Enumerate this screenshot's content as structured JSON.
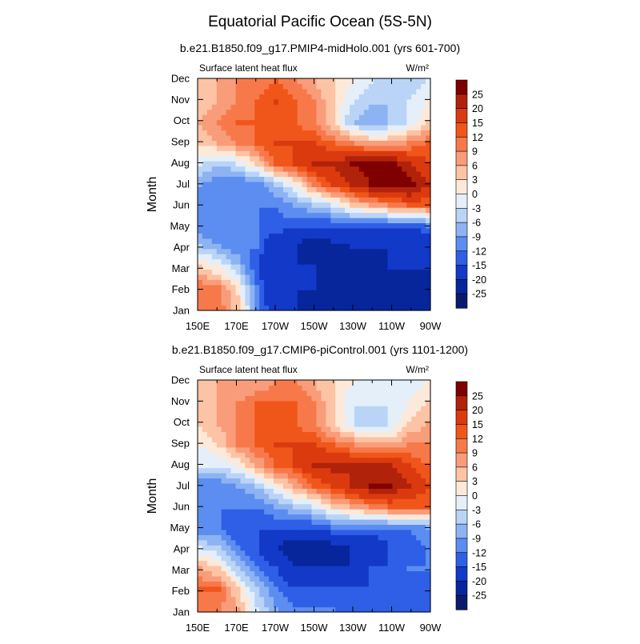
{
  "title": "Equatorial Pacific Ocean (5S-5N)",
  "colorbar_labels": [
    "25",
    "20",
    "15",
    "12",
    "9",
    "6",
    "3",
    "0",
    "-3",
    "-6",
    "-9",
    "-12",
    "-15",
    "-20",
    "-25"
  ],
  "colorbar_colors": [
    "#7f0000",
    "#b1220a",
    "#db3a0f",
    "#f0561a",
    "#f7794a",
    "#f99c7a",
    "#fcc3a4",
    "#fde9d9",
    "#e4effa",
    "#b9d4f6",
    "#8db3f3",
    "#5c8df0",
    "#2e5fe6",
    "#1239c8",
    "#07269c",
    "#0a1b6c"
  ],
  "chart_data": [
    {
      "type": "heatmap",
      "title": "b.e21.B1850.f09_g17.PMIP4-midHolo.001 (yrs 601-700)",
      "left_label": "Surface latent heat flux",
      "units": "W/m²",
      "ylabel": "Month",
      "x_ticks": [
        "150E",
        "170E",
        "170W",
        "150W",
        "130W",
        "110W",
        "90W"
      ],
      "y_ticks": [
        "Jan",
        "Feb",
        "Mar",
        "Apr",
        "May",
        "Jun",
        "Jul",
        "Aug",
        "Sep",
        "Oct",
        "Nov",
        "Dec"
      ],
      "x_values": [
        150,
        160,
        170,
        180,
        190,
        200,
        210,
        220,
        230,
        240,
        250,
        260,
        270
      ],
      "values": [
        [
          10,
          11,
          4,
          -10,
          -20,
          -20,
          -22,
          -25,
          -25,
          -25,
          -25,
          -25,
          -25
        ],
        [
          11,
          9,
          2,
          -12,
          -20,
          -20,
          -20,
          -22,
          -22,
          -22,
          -22,
          -22,
          -22
        ],
        [
          3,
          0,
          -6,
          -15,
          -20,
          -20,
          -20,
          -22,
          -22,
          -22,
          -20,
          -20,
          -20
        ],
        [
          -6,
          -9,
          -12,
          -12,
          -20,
          -20,
          -25,
          -21,
          -20,
          -20,
          -20,
          -20,
          -20
        ],
        [
          -12,
          -12,
          -12,
          -12,
          -13,
          -14,
          -15,
          -15,
          -15,
          -15,
          -15,
          -15,
          -12
        ],
        [
          -12,
          -12,
          -12,
          -12,
          -12,
          -9,
          -6,
          -3,
          3,
          6,
          9,
          12,
          12
        ],
        [
          -9,
          -12,
          -12,
          -12,
          -6,
          0,
          9,
          15,
          20,
          25,
          28,
          28,
          20
        ],
        [
          -3,
          -6,
          -3,
          3,
          12,
          15,
          20,
          20,
          25,
          28,
          28,
          20,
          15
        ],
        [
          3,
          6,
          9,
          12,
          15,
          15,
          15,
          12,
          9,
          6,
          6,
          9,
          12
        ],
        [
          6,
          9,
          12,
          12,
          12,
          12,
          9,
          3,
          -6,
          -9,
          -6,
          -3,
          3
        ],
        [
          3,
          6,
          9,
          12,
          15,
          12,
          9,
          3,
          -3,
          -6,
          -6,
          -3,
          0
        ],
        [
          3,
          6,
          9,
          9,
          12,
          9,
          6,
          3,
          0,
          -3,
          -6,
          -6,
          -3
        ]
      ]
    },
    {
      "type": "heatmap",
      "title": "b.e21.B1850.f09_g17.CMIP6-piControl.001 (yrs 1101-1200)",
      "left_label": "Surface latent heat flux",
      "units": "W/m²",
      "ylabel": "Month",
      "x_ticks": [
        "150E",
        "170E",
        "170W",
        "150W",
        "130W",
        "110W",
        "90W"
      ],
      "y_ticks": [
        "Jan",
        "Feb",
        "Mar",
        "Apr",
        "May",
        "Jun",
        "Jul",
        "Aug",
        "Sep",
        "Oct",
        "Nov",
        "Dec"
      ],
      "x_values": [
        150,
        160,
        170,
        180,
        190,
        200,
        210,
        220,
        230,
        240,
        250,
        260,
        270
      ],
      "values": [
        [
          9,
          9,
          6,
          -3,
          -9,
          -12,
          -12,
          -12,
          -15,
          -15,
          -15,
          -15,
          -15
        ],
        [
          12,
          12,
          3,
          -6,
          -12,
          -15,
          -15,
          -15,
          -15,
          -15,
          -15,
          -15,
          -15
        ],
        [
          6,
          3,
          -6,
          -12,
          -15,
          -20,
          -20,
          -20,
          -20,
          -15,
          -15,
          -12,
          -12
        ],
        [
          -3,
          -6,
          -12,
          -15,
          -20,
          -25,
          -25,
          -22,
          -20,
          -20,
          -15,
          -15,
          -12
        ],
        [
          -12,
          -12,
          -15,
          -15,
          -15,
          -15,
          -15,
          -12,
          -12,
          -12,
          -12,
          -12,
          -9
        ],
        [
          -12,
          -12,
          -12,
          -12,
          -9,
          -6,
          -3,
          3,
          6,
          9,
          12,
          12,
          12
        ],
        [
          -12,
          -12,
          -9,
          -6,
          0,
          6,
          12,
          15,
          20,
          25,
          25,
          20,
          15
        ],
        [
          -3,
          -3,
          0,
          6,
          12,
          15,
          20,
          22,
          20,
          20,
          20,
          15,
          12
        ],
        [
          0,
          3,
          9,
          12,
          15,
          15,
          15,
          12,
          9,
          6,
          6,
          9,
          9
        ],
        [
          3,
          6,
          9,
          12,
          12,
          12,
          9,
          3,
          -3,
          -6,
          -3,
          3,
          6
        ],
        [
          3,
          6,
          9,
          12,
          12,
          12,
          9,
          3,
          -3,
          -3,
          -3,
          0,
          3
        ],
        [
          3,
          6,
          6,
          6,
          9,
          9,
          6,
          3,
          0,
          -3,
          -3,
          -3,
          0
        ]
      ]
    }
  ]
}
